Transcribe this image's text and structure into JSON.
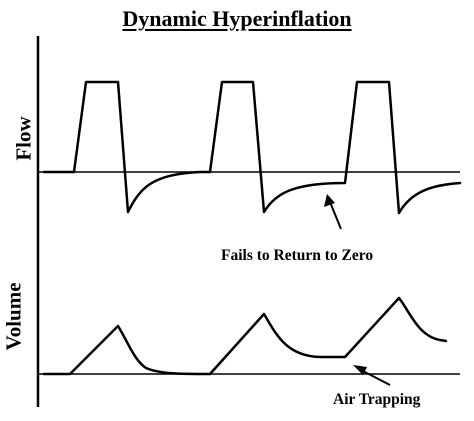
{
  "title": "Dynamic Hyperinflation",
  "panels": {
    "flow": {
      "label": "Flow"
    },
    "volume": {
      "label": "Volume"
    }
  },
  "annotations": {
    "fails_to_return": "Fails to Return to Zero",
    "air_trapping": "Air Trapping"
  },
  "colors": {
    "stroke": "#000000",
    "background": "#ffffff"
  }
}
